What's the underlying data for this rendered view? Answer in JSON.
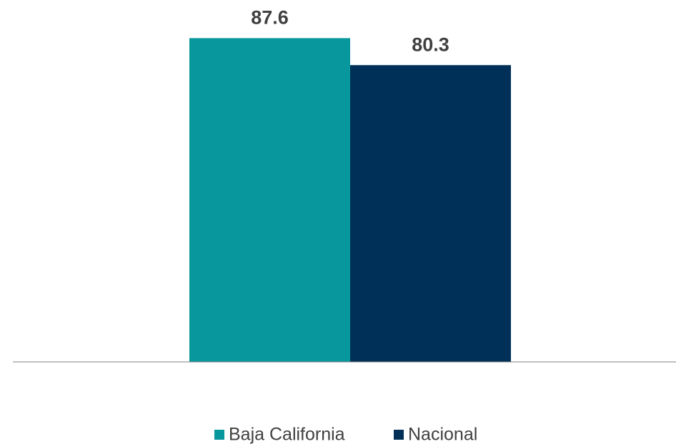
{
  "chart_data": {
    "type": "bar",
    "categories": [
      null
    ],
    "series": [
      {
        "name": "Baja California",
        "color": "#08979c",
        "values": [
          87.6
        ]
      },
      {
        "name": "Nacional",
        "color": "#003057",
        "values": [
          80.3
        ]
      }
    ],
    "ylim": [
      0,
      90
    ]
  }
}
